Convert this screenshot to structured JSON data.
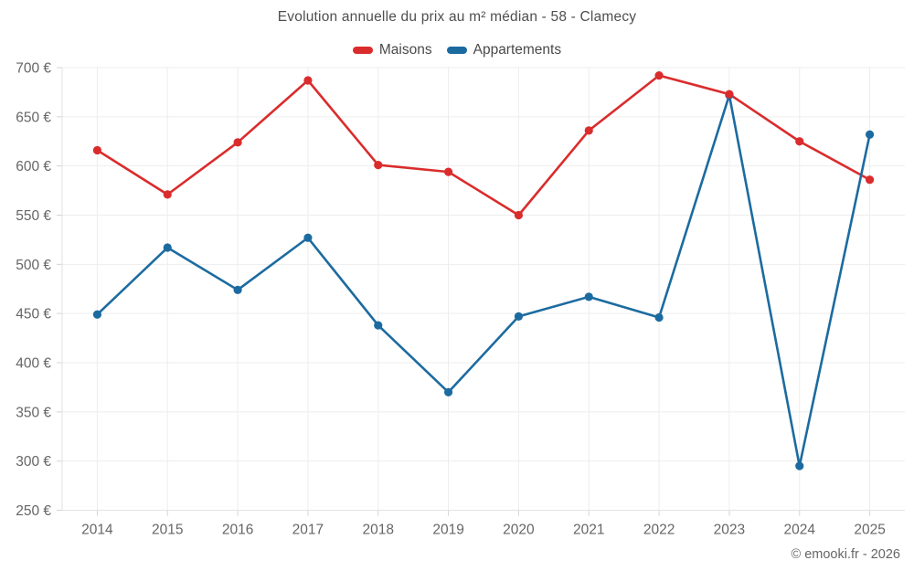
{
  "chart_data": {
    "type": "line",
    "title": "Evolution annuelle du prix au m² médian - 58 - Clamecy",
    "categories": [
      "2014",
      "2015",
      "2016",
      "2017",
      "2018",
      "2019",
      "2020",
      "2021",
      "2022",
      "2023",
      "2024",
      "2025"
    ],
    "series": [
      {
        "name": "Maisons",
        "color": "#da2c2c",
        "values": [
          616,
          571,
          624,
          687,
          601,
          594,
          550,
          636,
          692,
          673,
          625,
          586
        ]
      },
      {
        "name": "Appartements",
        "color": "#1c6ba0",
        "values": [
          449,
          517,
          474,
          527,
          438,
          370,
          447,
          467,
          446,
          672,
          295,
          632
        ]
      }
    ],
    "y_axis": {
      "min": 250,
      "max": 700,
      "step": 50,
      "suffix": " €",
      "tick_labels": [
        "250 €",
        "300 €",
        "350 €",
        "400 €",
        "450 €",
        "500 €",
        "550 €",
        "600 €",
        "650 €",
        "700 €"
      ]
    },
    "xlabel": "",
    "ylabel": "",
    "legend_position": "top",
    "grid": true
  },
  "footer": {
    "credit": "© emooki.fr - 2026"
  },
  "style_colors": {
    "grid": "#ededed",
    "axis_border": "#e2e2e2",
    "tick": "#d4d4d4",
    "axis_text": "#666666"
  }
}
